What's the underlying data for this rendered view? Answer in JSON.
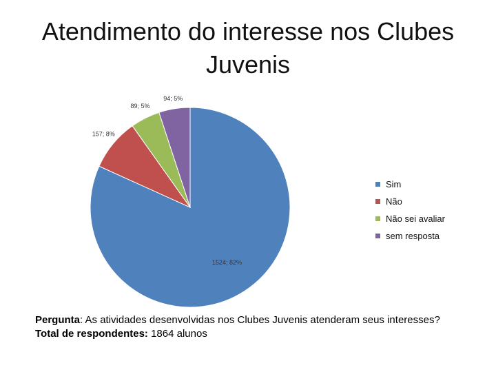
{
  "title_line1": "Atendimento do interesse nos Clubes",
  "title_line2": "Juvenis",
  "chart_data": {
    "type": "pie",
    "title": "Atendimento do interesse nos Clubes Juvenis",
    "categories": [
      "Sim",
      "Não",
      "Não sei avaliar",
      "sem resposta"
    ],
    "values": [
      1524,
      157,
      89,
      94
    ],
    "percent_labels": [
      "82%",
      "8%",
      "5%",
      "5%"
    ],
    "data_labels": [
      "1524; 82%",
      "157; 8%",
      "89; 5%",
      "94; 5%"
    ],
    "colors": [
      "#4F81BD",
      "#C0504D",
      "#9BBB59",
      "#8064A2"
    ],
    "start_angle": "12 o'clock, clockwise",
    "legend": "right"
  },
  "legend_items": [
    "Sim",
    "Não",
    "Não sei avaliar",
    "sem resposta"
  ],
  "footnote": {
    "question_label": "Pergunta",
    "question_text": ": As atividades desenvolvidas nos Clubes Juvenis atenderam seus interesses?",
    "total_label": "Total de respondentes:",
    "total_text": " 1864 alunos"
  }
}
